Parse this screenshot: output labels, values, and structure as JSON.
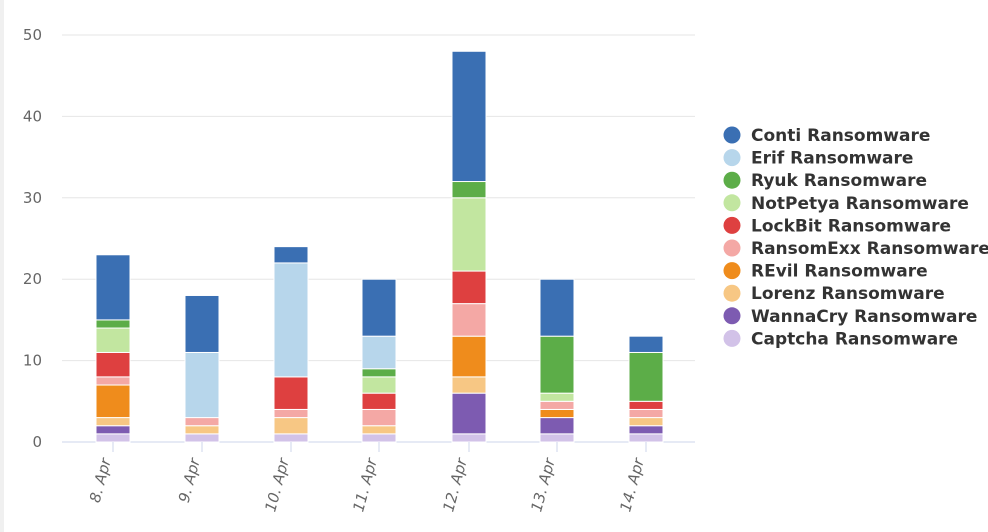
{
  "chart_data": {
    "type": "bar",
    "stacked": true,
    "categories": [
      "8. Apr",
      "9. Apr",
      "10. Apr",
      "11. Apr",
      "12. Apr",
      "13. Apr",
      "14. Apr"
    ],
    "ylim": [
      0,
      50
    ],
    "yticks": [
      0,
      10,
      20,
      30,
      40,
      50
    ],
    "grid": true,
    "legend": "right",
    "series": [
      {
        "name": "Captcha Ransomware",
        "color": "#d2c2e8",
        "values": [
          1,
          1,
          1,
          1,
          1,
          1,
          1
        ]
      },
      {
        "name": "WannaCry Ransomware",
        "color": "#7d5bb1",
        "values": [
          1,
          0,
          0,
          0,
          5,
          2,
          1
        ]
      },
      {
        "name": "Lorenz Ransomware",
        "color": "#f7c784",
        "values": [
          1,
          1,
          2,
          1,
          2,
          0,
          1
        ]
      },
      {
        "name": "REvil Ransomware",
        "color": "#ef8c1c",
        "values": [
          4,
          0,
          0,
          0,
          5,
          1,
          0
        ]
      },
      {
        "name": "RansomExx Ransomware",
        "color": "#f4a8a5",
        "values": [
          1,
          1,
          1,
          2,
          4,
          1,
          1
        ]
      },
      {
        "name": "LockBit Ransomware",
        "color": "#de4040",
        "values": [
          3,
          0,
          4,
          2,
          4,
          0,
          1
        ]
      },
      {
        "name": "NotPetya Ransomware",
        "color": "#c2e6a0",
        "values": [
          3,
          0,
          0,
          2,
          9,
          1,
          0
        ]
      },
      {
        "name": "Ryuk Ransomware",
        "color": "#5cad48",
        "values": [
          1,
          0,
          0,
          1,
          2,
          7,
          6
        ]
      },
      {
        "name": "Erif Ransomware",
        "color": "#b7d6eb",
        "values": [
          0,
          8,
          14,
          4,
          0,
          0,
          0
        ]
      },
      {
        "name": "Conti Ransomware",
        "color": "#3a6fb3",
        "values": [
          8,
          7,
          2,
          7,
          16,
          7,
          2
        ]
      }
    ],
    "legend_order": [
      "Conti Ransomware",
      "Erif Ransomware",
      "Ryuk Ransomware",
      "NotPetya Ransomware",
      "LockBit Ransomware",
      "RansomExx Ransomware",
      "REvil Ransomware",
      "Lorenz Ransomware",
      "WannaCry Ransomware",
      "Captcha Ransomware"
    ]
  }
}
